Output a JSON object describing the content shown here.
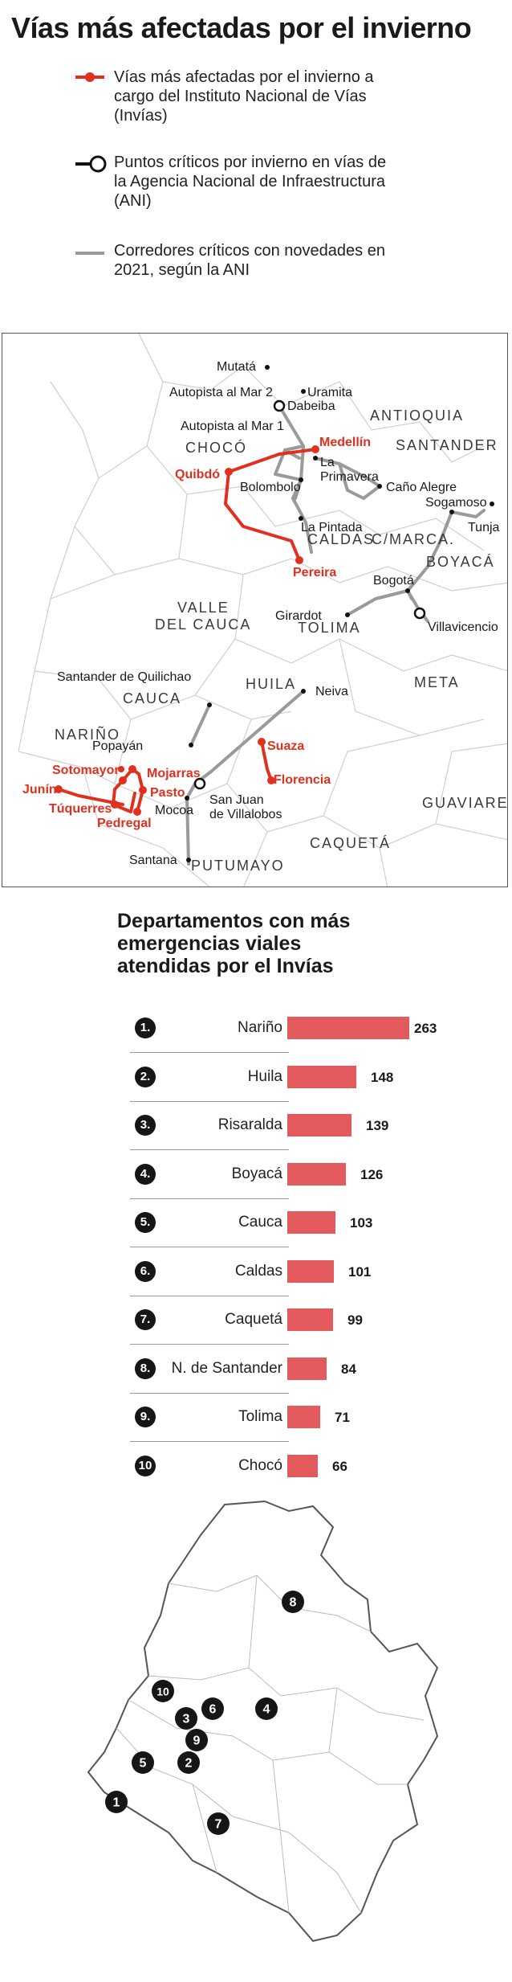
{
  "title": "Vías más afectadas por el invierno",
  "legend": [
    {
      "key": "invias",
      "text": "Vías más afectadas por el invierno a cargo del Instituto Nacional de Vías (Invías)",
      "color": "#e0301e"
    },
    {
      "key": "ani",
      "text": "Puntos críticos por invierno en vías de la Agencia Nacional de Infraestructura (ANI)",
      "color": "#111111"
    },
    {
      "key": "corredores",
      "text": "Corredores críticos con novedades en 2021, según la ANI",
      "color": "#999999"
    }
  ],
  "map": {
    "regions": [
      "ANTIOQUIA",
      "CHOCÓ",
      "SANTANDER",
      "CALDAS",
      "BOYACÁ",
      "C/MARCA.",
      "VALLE DEL CAUCA",
      "TOLIMA",
      "META",
      "HUILA",
      "CAUCA",
      "NARIÑO",
      "GUAVIARE",
      "CAQUETÁ",
      "PUTUMAYO"
    ],
    "places": [
      "Mutatá",
      "Dabeiba",
      "Uramita",
      "Autopista al Mar 2",
      "Autopista al Mar 1",
      "Bolombolo",
      "La Primavera",
      "Caño Alegre",
      "La Pintada",
      "Sogamoso",
      "Tunja",
      "Bogotá",
      "Girardot",
      "Villavicencio",
      "Santander de Quilichao",
      "Popayán",
      "Neiva",
      "Mocoa",
      "San Juan de Villalobos",
      "Santana"
    ],
    "red_places": [
      "Medellín",
      "Quibdó",
      "Pereira",
      "Suaza",
      "Florencia",
      "Sotomayor",
      "Mojarras",
      "Pasto",
      "Junín",
      "Túquerres",
      "Pedregal"
    ]
  },
  "chart_data": {
    "type": "bar",
    "title": "Departamentos con más emergencias viales atendidas por el Invías",
    "ranks": [
      "1.",
      "2.",
      "3.",
      "4.",
      "5.",
      "6.",
      "7.",
      "8.",
      "9.",
      "10"
    ],
    "categories": [
      "Nariño",
      "Huila",
      "Risaralda",
      "Boyacá",
      "Cauca",
      "Caldas",
      "Caquetá",
      "N. de Santander",
      "Tolima",
      "Chocó"
    ],
    "values": [
      263,
      148,
      139,
      126,
      103,
      101,
      99,
      84,
      71,
      66
    ],
    "bar_color": "#e35a5c"
  },
  "locator_labels": [
    "1",
    "2",
    "3",
    "4",
    "5",
    "6",
    "7",
    "8",
    "9",
    "10"
  ]
}
